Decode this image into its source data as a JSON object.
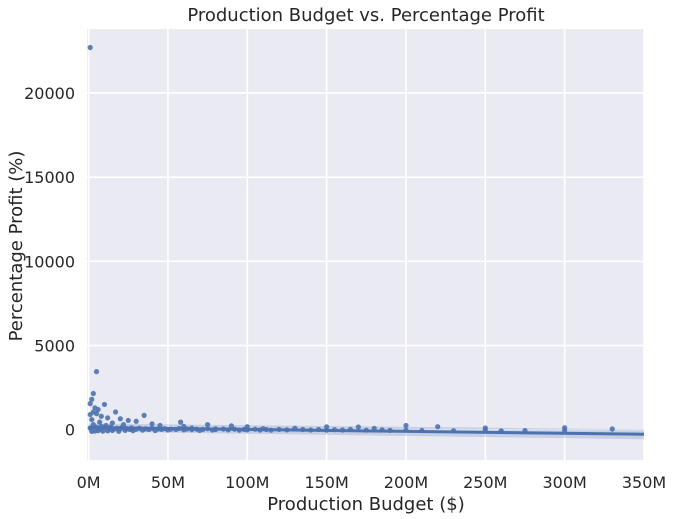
{
  "chart_data": {
    "type": "scatter",
    "title": "Production Budget vs. Percentage Profit",
    "xlabel": "Production Budget ($)",
    "ylabel": "Percentage Profit (%)",
    "xlim": [
      -1,
      350
    ],
    "ylim": [
      -1800,
      23800
    ],
    "x_unit": "M",
    "xticks": [
      0,
      50,
      100,
      150,
      200,
      250,
      300,
      350
    ],
    "xtick_labels": [
      "0M",
      "50M",
      "100M",
      "150M",
      "200M",
      "250M",
      "300M",
      "350M"
    ],
    "yticks": [
      0,
      5000,
      10000,
      15000,
      20000
    ],
    "ytick_labels": [
      "0",
      "5000",
      "10000",
      "15000",
      "20000"
    ],
    "grid": true,
    "colors": {
      "background": "#eaeaf2",
      "grid": "#ffffff",
      "points": "#4c72b0",
      "line": "#4c72b0"
    },
    "regression": {
      "x": [
        0,
        350
      ],
      "y": [
        130,
        -270
      ]
    },
    "points": [
      {
        "x": 1,
        "y": 22700
      },
      {
        "x": 5,
        "y": 3450
      },
      {
        "x": 3,
        "y": 2150
      },
      {
        "x": 2,
        "y": 1800
      },
      {
        "x": 1,
        "y": 1550
      },
      {
        "x": 10,
        "y": 1500
      },
      {
        "x": 4,
        "y": 1300
      },
      {
        "x": 6,
        "y": 1200
      },
      {
        "x": 3,
        "y": 1050
      },
      {
        "x": 17,
        "y": 1050
      },
      {
        "x": 5,
        "y": 950
      },
      {
        "x": 1,
        "y": 900
      },
      {
        "x": 35,
        "y": 850
      },
      {
        "x": 8,
        "y": 800
      },
      {
        "x": 12,
        "y": 700
      },
      {
        "x": 20,
        "y": 650
      },
      {
        "x": 2,
        "y": 600
      },
      {
        "x": 25,
        "y": 550
      },
      {
        "x": 30,
        "y": 500
      },
      {
        "x": 58,
        "y": 450
      },
      {
        "x": 7,
        "y": 450
      },
      {
        "x": 15,
        "y": 400
      },
      {
        "x": 40,
        "y": 350
      },
      {
        "x": 75,
        "y": 300
      },
      {
        "x": 22,
        "y": 300
      },
      {
        "x": 11,
        "y": 250
      },
      {
        "x": 45,
        "y": 250
      },
      {
        "x": 90,
        "y": 230
      },
      {
        "x": 60,
        "y": 200
      },
      {
        "x": 100,
        "y": 180
      },
      {
        "x": 150,
        "y": 170
      },
      {
        "x": 170,
        "y": 160
      },
      {
        "x": 200,
        "y": 250
      },
      {
        "x": 220,
        "y": 180
      },
      {
        "x": 250,
        "y": 100
      },
      {
        "x": 300,
        "y": 120
      },
      {
        "x": 330,
        "y": 40
      },
      {
        "x": 180,
        "y": 80
      },
      {
        "x": 130,
        "y": 90
      },
      {
        "x": 110,
        "y": 60
      },
      {
        "x": 80,
        "y": 50
      },
      {
        "x": 65,
        "y": 100
      },
      {
        "x": 1,
        "y": 100
      },
      {
        "x": 2,
        "y": -100
      },
      {
        "x": 3,
        "y": 300
      },
      {
        "x": 4,
        "y": -80
      },
      {
        "x": 5,
        "y": 150
      },
      {
        "x": 6,
        "y": -60
      },
      {
        "x": 7,
        "y": 50
      },
      {
        "x": 8,
        "y": 200
      },
      {
        "x": 9,
        "y": -90
      },
      {
        "x": 10,
        "y": 120
      },
      {
        "x": 12,
        "y": -70
      },
      {
        "x": 13,
        "y": 80
      },
      {
        "x": 14,
        "y": 160
      },
      {
        "x": 15,
        "y": -50
      },
      {
        "x": 16,
        "y": 40
      },
      {
        "x": 18,
        "y": 90
      },
      {
        "x": 19,
        "y": -95
      },
      {
        "x": 20,
        "y": 60
      },
      {
        "x": 21,
        "y": 130
      },
      {
        "x": 23,
        "y": -40
      },
      {
        "x": 24,
        "y": 70
      },
      {
        "x": 26,
        "y": 20
      },
      {
        "x": 27,
        "y": 110
      },
      {
        "x": 28,
        "y": -60
      },
      {
        "x": 30,
        "y": 30
      },
      {
        "x": 32,
        "y": 90
      },
      {
        "x": 34,
        "y": -30
      },
      {
        "x": 36,
        "y": 50
      },
      {
        "x": 38,
        "y": 10
      },
      {
        "x": 40,
        "y": 80
      },
      {
        "x": 42,
        "y": -50
      },
      {
        "x": 44,
        "y": 40
      },
      {
        "x": 46,
        "y": 20
      },
      {
        "x": 48,
        "y": 60
      },
      {
        "x": 50,
        "y": -20
      },
      {
        "x": 52,
        "y": 30
      },
      {
        "x": 55,
        "y": 10
      },
      {
        "x": 57,
        "y": 70
      },
      {
        "x": 60,
        "y": -10
      },
      {
        "x": 62,
        "y": 40
      },
      {
        "x": 65,
        "y": 0
      },
      {
        "x": 68,
        "y": 30
      },
      {
        "x": 70,
        "y": -40
      },
      {
        "x": 72,
        "y": 20
      },
      {
        "x": 75,
        "y": 60
      },
      {
        "x": 78,
        "y": -20
      },
      {
        "x": 80,
        "y": 10
      },
      {
        "x": 85,
        "y": 40
      },
      {
        "x": 88,
        "y": -10
      },
      {
        "x": 92,
        "y": 30
      },
      {
        "x": 95,
        "y": -30
      },
      {
        "x": 98,
        "y": 20
      },
      {
        "x": 100,
        "y": -10
      },
      {
        "x": 105,
        "y": 30
      },
      {
        "x": 108,
        "y": -20
      },
      {
        "x": 112,
        "y": 10
      },
      {
        "x": 115,
        "y": -30
      },
      {
        "x": 120,
        "y": 20
      },
      {
        "x": 125,
        "y": -10
      },
      {
        "x": 135,
        "y": 10
      },
      {
        "x": 140,
        "y": -20
      },
      {
        "x": 145,
        "y": 10
      },
      {
        "x": 150,
        "y": -30
      },
      {
        "x": 155,
        "y": 0
      },
      {
        "x": 160,
        "y": -20
      },
      {
        "x": 165,
        "y": 20
      },
      {
        "x": 175,
        "y": -30
      },
      {
        "x": 185,
        "y": -10
      },
      {
        "x": 190,
        "y": -40
      },
      {
        "x": 200,
        "y": -20
      },
      {
        "x": 210,
        "y": -50
      },
      {
        "x": 230,
        "y": -60
      },
      {
        "x": 250,
        "y": -40
      },
      {
        "x": 260,
        "y": -70
      },
      {
        "x": 275,
        "y": -50
      },
      {
        "x": 300,
        "y": -40
      }
    ]
  }
}
